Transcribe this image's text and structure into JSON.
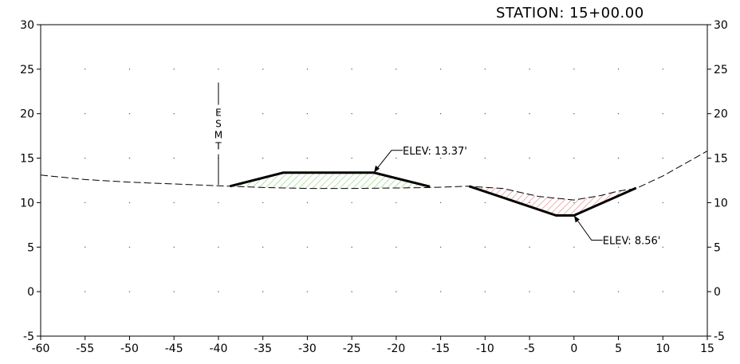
{
  "title": "STATION: 15+00.00",
  "axes": {
    "x_ticks": [
      -60,
      -55,
      -50,
      -45,
      -40,
      -35,
      -30,
      -25,
      -20,
      -15,
      -10,
      -5,
      0,
      5,
      10,
      15
    ],
    "y_ticks": [
      -5,
      0,
      5,
      10,
      15,
      20,
      25,
      30
    ],
    "xlim": [
      -60,
      15
    ],
    "ylim": [
      -5,
      30
    ],
    "grid": "dotted points at 5-unit spacing"
  },
  "chart_data": {
    "type": "line",
    "existing_ground": [
      [
        -60,
        13.1
      ],
      [
        -55,
        12.6
      ],
      [
        -50,
        12.3
      ],
      [
        -45,
        12.1
      ],
      [
        -40,
        11.9
      ],
      [
        -35,
        11.7
      ],
      [
        -30,
        11.6
      ],
      [
        -25,
        11.6
      ],
      [
        -20,
        11.65
      ],
      [
        -16,
        11.7
      ],
      [
        -12,
        11.85
      ],
      [
        -8,
        11.6
      ],
      [
        -4,
        10.7
      ],
      [
        0,
        10.3
      ],
      [
        3,
        10.8
      ],
      [
        5,
        11.3
      ],
      [
        7,
        11.6
      ],
      [
        10,
        13.0
      ],
      [
        15,
        15.8
      ]
    ],
    "berm_section": [
      [
        -38.7,
        11.85
      ],
      [
        -32.7,
        13.37
      ],
      [
        -22.5,
        13.37
      ],
      [
        -16.2,
        11.8
      ]
    ],
    "ditch_section": [
      [
        -11.8,
        11.85
      ],
      [
        -2,
        8.56
      ],
      [
        0,
        8.56
      ],
      [
        7,
        11.65
      ]
    ],
    "labels": [
      {
        "text": "ELEV: 13.37'",
        "x": -22.5,
        "y": 13.37
      },
      {
        "text": "ELEV: 8.56'",
        "x": 0,
        "y": 8.56
      }
    ],
    "esmt": {
      "x": -40,
      "y_top": 23.5,
      "y_bottom": 12.0,
      "letters": [
        "E",
        "S",
        "M",
        "T"
      ]
    }
  }
}
